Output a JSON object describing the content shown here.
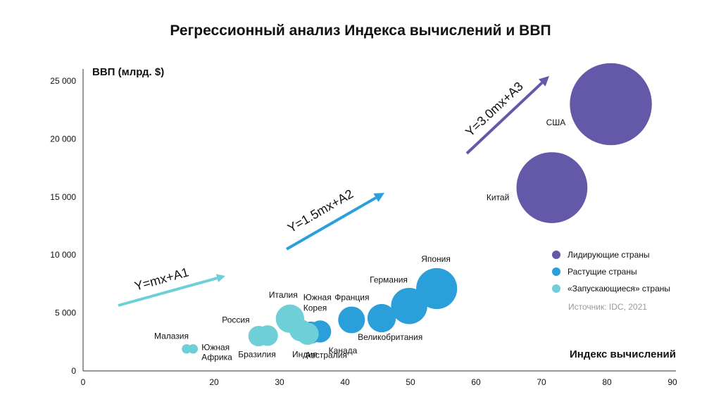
{
  "chart_data": {
    "type": "bubble",
    "title": "Регрессионный анализ Индекса вычислений и ВВП",
    "ylabel": "ВВП (млрд. $)",
    "xlabel": "Индекс вычислений",
    "xlim": [
      0,
      90
    ],
    "ylim": [
      0,
      25000
    ],
    "x_ticks": [
      "0",
      "20",
      "30",
      "40",
      "50",
      "60",
      "70",
      "80",
      "90"
    ],
    "x_tick_values": [
      0,
      20,
      30,
      40,
      50,
      60,
      70,
      80,
      90
    ],
    "y_ticks": [
      "0",
      "5 000",
      "10 000",
      "15 000",
      "20 000",
      "25 000"
    ],
    "y_tick_values": [
      0,
      5000,
      10000,
      15000,
      20000,
      25000
    ],
    "colors": {
      "leaders": "#6459a8",
      "growing": "#2b9fd9",
      "starters": "#6fcfd6"
    },
    "series": [
      {
        "name": "Лидирующие страны",
        "color": "#6459a8",
        "points": [
          {
            "label": "США",
            "x": 80.6,
            "y": 23000,
            "size": 5.2
          },
          {
            "label": "Китай",
            "x": 71.6,
            "y": 15800,
            "size": 4.5
          }
        ]
      },
      {
        "name": "Растущие страны",
        "color": "#2b9fd9",
        "points": [
          {
            "label": "Япония",
            "x": 54.0,
            "y": 7100,
            "size": 2.6
          },
          {
            "label": "Германия",
            "x": 49.8,
            "y": 5600,
            "size": 2.3
          },
          {
            "label": "Великобритания",
            "x": 45.6,
            "y": 4550,
            "size": 1.8
          },
          {
            "label": "Франция",
            "x": 41.0,
            "y": 4400,
            "size": 1.7
          },
          {
            "label": "Канада",
            "x": 36.2,
            "y": 3400,
            "size": 1.4
          },
          {
            "label": "Австралия",
            "x": 34.8,
            "y": 3300,
            "size": 1.4
          }
        ]
      },
      {
        "name": "«Запускающиеся» страны",
        "color": "#6fcfd6",
        "points": [
          {
            "label": "Италия",
            "x": 31.6,
            "y": 4500,
            "size": 1.8
          },
          {
            "label": "Южная Корея",
            "x": 33.2,
            "y": 3500,
            "size": 1.4
          },
          {
            "label": "Индия",
            "x": 34.3,
            "y": 3200,
            "size": 1.4
          },
          {
            "label": "Бразилия",
            "x": 28.2,
            "y": 3050,
            "size": 1.3
          },
          {
            "label": "Россия",
            "x": 26.8,
            "y": 3000,
            "size": 1.3
          },
          {
            "label": "Малазия",
            "x": 15.8,
            "y": 1900,
            "size": 0.6
          },
          {
            "label": "Южная Африка",
            "x": 16.8,
            "y": 1900,
            "size": 0.6
          }
        ]
      }
    ],
    "trend_arrows": [
      {
        "label": "Y=mx+A1",
        "color": "#6fcfd6"
      },
      {
        "label": "Y=1.5mx+A2",
        "color": "#2b9fd9"
      },
      {
        "label": "Y=3.0mx+A3",
        "color": "#6459a8"
      }
    ],
    "legend": {
      "placement": "right",
      "items": [
        {
          "label": "Лидирующие страны",
          "color": "#6459a8"
        },
        {
          "label": "Растущие страны",
          "color": "#2b9fd9"
        },
        {
          "label": "«Запускающиеся» страны",
          "color": "#6fcfd6"
        }
      ]
    },
    "source": "Источник: IDC, 2021"
  }
}
